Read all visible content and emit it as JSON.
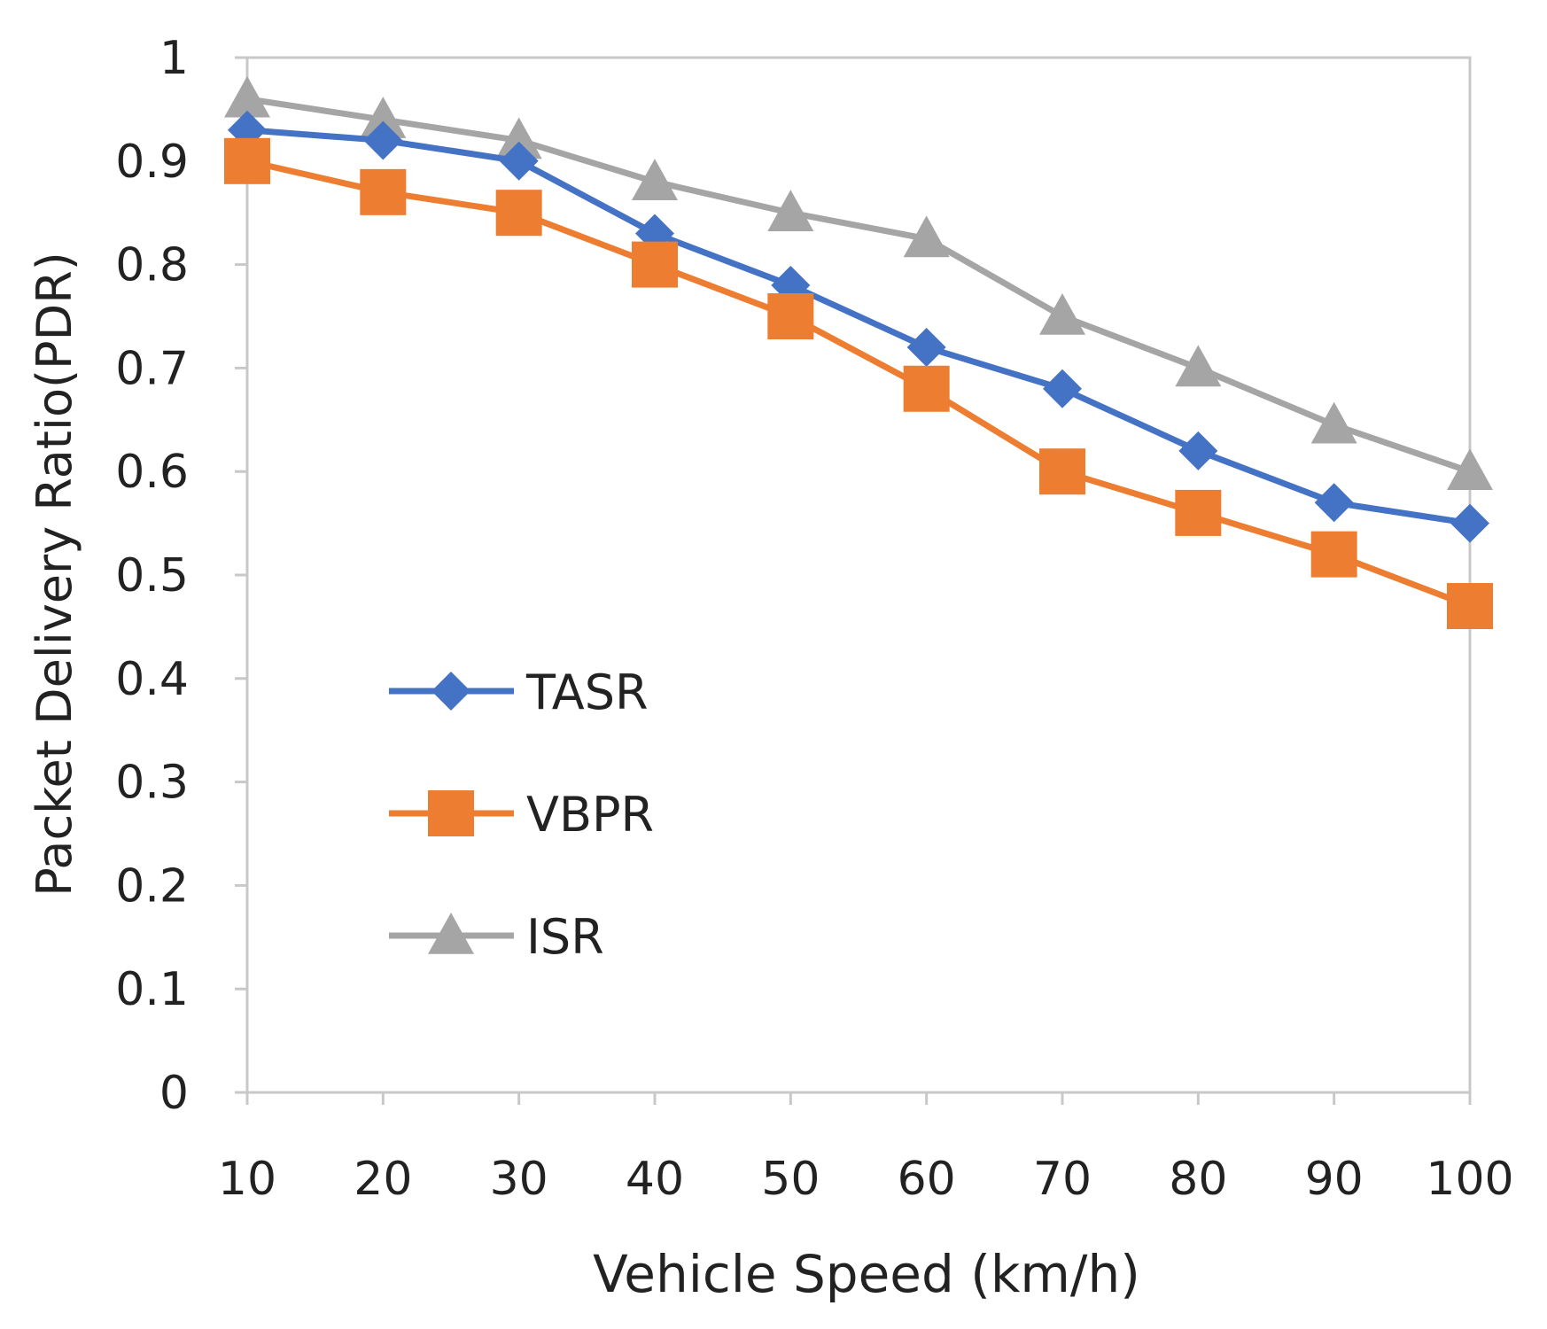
{
  "chart_data": {
    "type": "line",
    "title": "",
    "xlabel": "Vehicle Speed (km/h)",
    "ylabel": "Packet Delivery Ratio(PDR)",
    "x": [
      10,
      20,
      30,
      40,
      50,
      60,
      70,
      80,
      90,
      100
    ],
    "x_tick_labels": [
      "10",
      "20",
      "30",
      "40",
      "50",
      "60",
      "70",
      "80",
      "90",
      "100"
    ],
    "y_tick_labels": [
      "0",
      "0.1",
      "0.2",
      "0.3",
      "0.4",
      "0.5",
      "0.6",
      "0.7",
      "0.8",
      "0.9",
      "1"
    ],
    "ylim": [
      0,
      1
    ],
    "grid": false,
    "legend_position": "center-left",
    "series": [
      {
        "name": "TASR",
        "color": "#4472C4",
        "marker": "diamond",
        "values": [
          0.93,
          0.92,
          0.9,
          0.83,
          0.78,
          0.72,
          0.68,
          0.62,
          0.57,
          0.55
        ]
      },
      {
        "name": "VBPR",
        "color": "#ED7D31",
        "marker": "square",
        "values": [
          0.9,
          0.87,
          0.85,
          0.8,
          0.75,
          0.68,
          0.6,
          0.56,
          0.52,
          0.47
        ]
      },
      {
        "name": "ISR",
        "color": "#A5A5A5",
        "marker": "triangle",
        "values": [
          0.96,
          0.94,
          0.92,
          0.88,
          0.85,
          0.825,
          0.75,
          0.7,
          0.645,
          0.6
        ]
      }
    ]
  }
}
